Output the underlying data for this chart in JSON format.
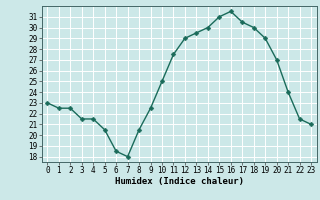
{
  "x": [
    0,
    1,
    2,
    3,
    4,
    5,
    6,
    7,
    8,
    9,
    10,
    11,
    12,
    13,
    14,
    15,
    16,
    17,
    18,
    19,
    20,
    21,
    22,
    23
  ],
  "y": [
    23,
    22.5,
    22.5,
    21.5,
    21.5,
    20.5,
    18.5,
    18,
    20.5,
    22.5,
    25,
    27.5,
    29,
    29.5,
    30,
    31,
    31.5,
    30.5,
    30,
    29,
    27,
    24,
    21.5,
    21
  ],
  "line_color": "#1a6b5a",
  "marker_color": "#1a6b5a",
  "bg_color": "#cce8e8",
  "grid_color": "#ffffff",
  "grid_minor_color": "#e0f0f0",
  "xlabel": "Humidex (Indice chaleur)",
  "ylim": [
    17.5,
    32.0
  ],
  "xlim": [
    -0.5,
    23.5
  ],
  "yticks": [
    18,
    19,
    20,
    21,
    22,
    23,
    24,
    25,
    26,
    27,
    28,
    29,
    30,
    31
  ],
  "xticks": [
    0,
    1,
    2,
    3,
    4,
    5,
    6,
    7,
    8,
    9,
    10,
    11,
    12,
    13,
    14,
    15,
    16,
    17,
    18,
    19,
    20,
    21,
    22,
    23
  ],
  "tick_fontsize": 5.5,
  "xlabel_fontsize": 6.5,
  "line_width": 1.0,
  "marker_size": 2.5
}
